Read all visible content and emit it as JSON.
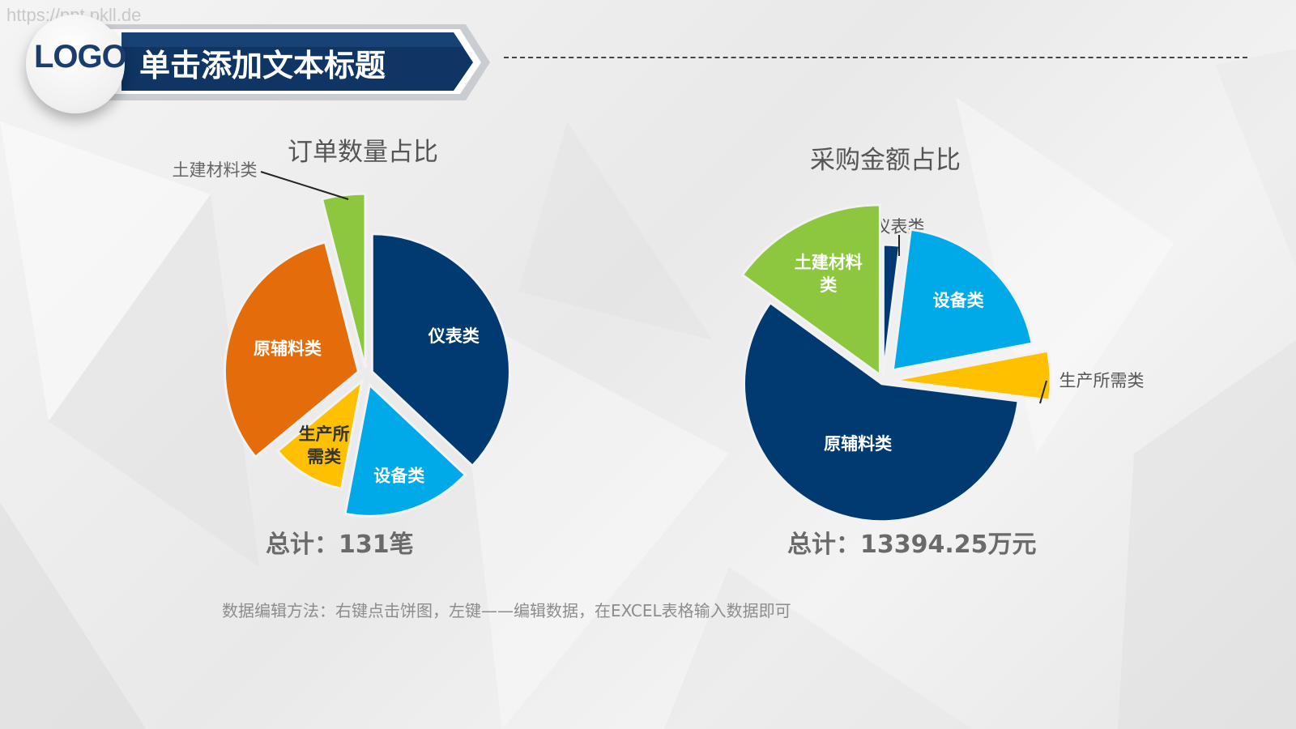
{
  "watermark": "https://ppt.pkll.de",
  "header": {
    "logo": "LOGO",
    "title": "单击添加文本标题"
  },
  "colors": {
    "navy": "#003a70",
    "sky": "#00a9e8",
    "yellow": "#ffc000",
    "orange": "#e46c0a",
    "green": "#8dc63f"
  },
  "chart_data": [
    {
      "type": "pie",
      "title": "订单数量占比",
      "total_label": "总计：131笔",
      "slices": [
        {
          "label": "仪表类",
          "value": 37
        },
        {
          "label": "设备类",
          "value": 16
        },
        {
          "label": "生产所\n需类",
          "value": 11
        },
        {
          "label": "原辅料类",
          "value": 32
        },
        {
          "label": "土建材料类",
          "value": 4
        }
      ]
    },
    {
      "type": "pie",
      "title": "采购金额占比",
      "total_label": "总计：13394.25万元",
      "slices": [
        {
          "label": "仪表类",
          "value": 2
        },
        {
          "label": "设备类",
          "value": 20
        },
        {
          "label": "生产所需类",
          "value": 5
        },
        {
          "label": "原辅料类",
          "value": 58
        },
        {
          "label": "土建材料\n类",
          "value": 15
        }
      ]
    }
  ],
  "footnote": "数据编辑方法：右键点击饼图，左键——编辑数据，在EXCEL表格输入数据即可"
}
